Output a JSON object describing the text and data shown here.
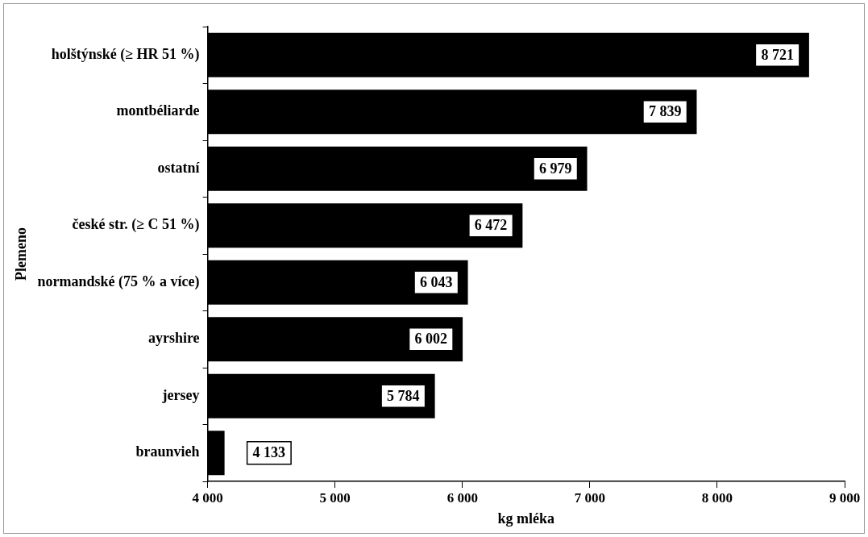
{
  "chart_data": {
    "type": "bar",
    "orientation": "horizontal",
    "xlabel": "kg mléka",
    "ylabel": "Plemeno",
    "categories": [
      "holštýnské (≥ HR 51 %)",
      "montbéliarde",
      "ostatní",
      "české str. (≥ C 51 %)",
      "normandské (75 % a více)",
      "ayrshire",
      "jersey",
      "braunvieh"
    ],
    "values": [
      8721,
      7839,
      6979,
      6472,
      6043,
      6002,
      5784,
      4133
    ],
    "value_labels": [
      "8 721",
      "7 839",
      "6 979",
      "6 472",
      "6 043",
      "6 002",
      "5 784",
      "4 133"
    ],
    "color": "#000000",
    "xlim": [
      4000,
      9000
    ],
    "xticks": [
      {
        "value": 4000,
        "label": "4 000"
      },
      {
        "value": 5000,
        "label": "5 000"
      },
      {
        "value": 6000,
        "label": "6 000"
      },
      {
        "value": 7000,
        "label": "7 000"
      },
      {
        "value": 8000,
        "label": "8 000"
      },
      {
        "value": 9000,
        "label": "9 000"
      }
    ],
    "grid": false,
    "legend": false
  }
}
